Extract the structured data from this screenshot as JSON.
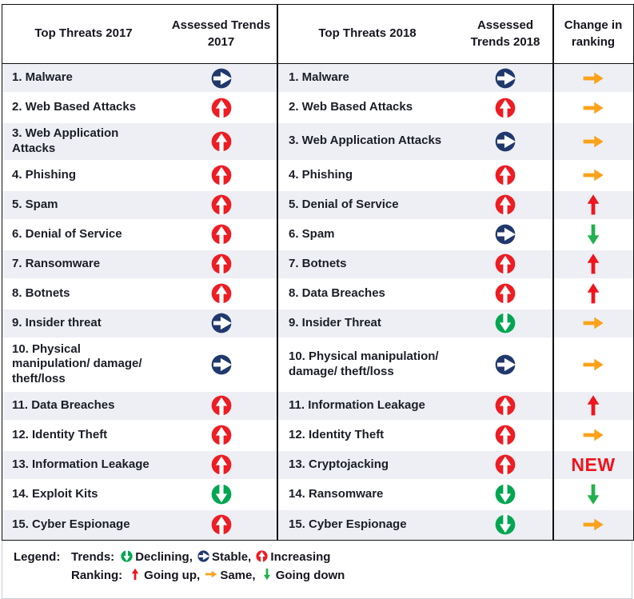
{
  "header": {
    "top_threats_2017": "Top Threats 2017",
    "assessed_trends_2017": "Assessed Trends 2017",
    "top_threats_2018": "Top Threats 2018",
    "assessed_trends_2018": "Assessed Trends 2018",
    "change_in_ranking": "Change in ranking"
  },
  "rows": [
    {
      "threat_2017": "1. Malware",
      "trend_2017": "stable",
      "threat_2018": "1. Malware",
      "trend_2018": "stable",
      "ranking": "same"
    },
    {
      "threat_2017": "2. Web Based Attacks",
      "trend_2017": "increasing",
      "threat_2018": "2. Web Based Attacks",
      "trend_2018": "increasing",
      "ranking": "same"
    },
    {
      "threat_2017": "3. Web Application Attacks",
      "trend_2017": "increasing",
      "threat_2018": "3. Web Application Attacks",
      "trend_2018": "stable",
      "ranking": "same"
    },
    {
      "threat_2017": "4. Phishing",
      "trend_2017": "increasing",
      "threat_2018": "4. Phishing",
      "trend_2018": "increasing",
      "ranking": "same"
    },
    {
      "threat_2017": "5. Spam",
      "trend_2017": "increasing",
      "threat_2018": "5. Denial of Service",
      "trend_2018": "increasing",
      "ranking": "up"
    },
    {
      "threat_2017": "6. Denial of Service",
      "trend_2017": "increasing",
      "threat_2018": "6. Spam",
      "trend_2018": "stable",
      "ranking": "down"
    },
    {
      "threat_2017": "7. Ransomware",
      "trend_2017": "increasing",
      "threat_2018": "7. Botnets",
      "trend_2018": "increasing",
      "ranking": "up"
    },
    {
      "threat_2017": "8. Botnets",
      "trend_2017": "increasing",
      "threat_2018": "8. Data Breaches",
      "trend_2018": "increasing",
      "ranking": "up"
    },
    {
      "threat_2017": "9. Insider threat",
      "trend_2017": "stable",
      "threat_2018": "9. Insider Threat",
      "trend_2018": "declining",
      "ranking": "same"
    },
    {
      "threat_2017": "10. Physical manipulation/ damage/ theft/loss",
      "trend_2017": "stable",
      "threat_2018": "10. Physical manipulation/ damage/ theft/loss",
      "trend_2018": "stable",
      "ranking": "same"
    },
    {
      "threat_2017": "11. Data Breaches",
      "trend_2017": "increasing",
      "threat_2018": "11. Information Leakage",
      "trend_2018": "increasing",
      "ranking": "up"
    },
    {
      "threat_2017": "12. Identity Theft",
      "trend_2017": "increasing",
      "threat_2018": "12. Identity Theft",
      "trend_2018": "increasing",
      "ranking": "same"
    },
    {
      "threat_2017": "13. Information Leakage",
      "trend_2017": "increasing",
      "threat_2018": "13. Cryptojacking",
      "trend_2018": "increasing",
      "ranking": "new"
    },
    {
      "threat_2017": "14. Exploit Kits",
      "trend_2017": "declining",
      "threat_2018": "14. Ransomware",
      "trend_2018": "declining",
      "ranking": "down"
    },
    {
      "threat_2017": "15. Cyber Espionage",
      "trend_2017": "increasing",
      "threat_2018": "15. Cyber Espionage",
      "trend_2018": "declining",
      "ranking": "same"
    }
  ],
  "labels": {
    "new": "NEW"
  },
  "legend": {
    "title": "Legend:",
    "trends_label": "Trends:",
    "trends": [
      {
        "icon": "declining",
        "label": "Declining,"
      },
      {
        "icon": "stable",
        "label": "Stable,"
      },
      {
        "icon": "increasing",
        "label": "Increasing"
      }
    ],
    "ranking_label": "Ranking:",
    "ranking": [
      {
        "icon": "up",
        "label": "Going up,"
      },
      {
        "icon": "same",
        "label": "Same,"
      },
      {
        "icon": "down",
        "label": "Going down"
      }
    ]
  },
  "colors": {
    "navy": "#20386c",
    "red": "#ee1c23",
    "green": "#00a651",
    "orange": "#faa21b",
    "arrow_red": "#f0141c",
    "arrow_green": "#22b14c",
    "row_shade": "#edeff4",
    "new_text": "#f0141c"
  }
}
